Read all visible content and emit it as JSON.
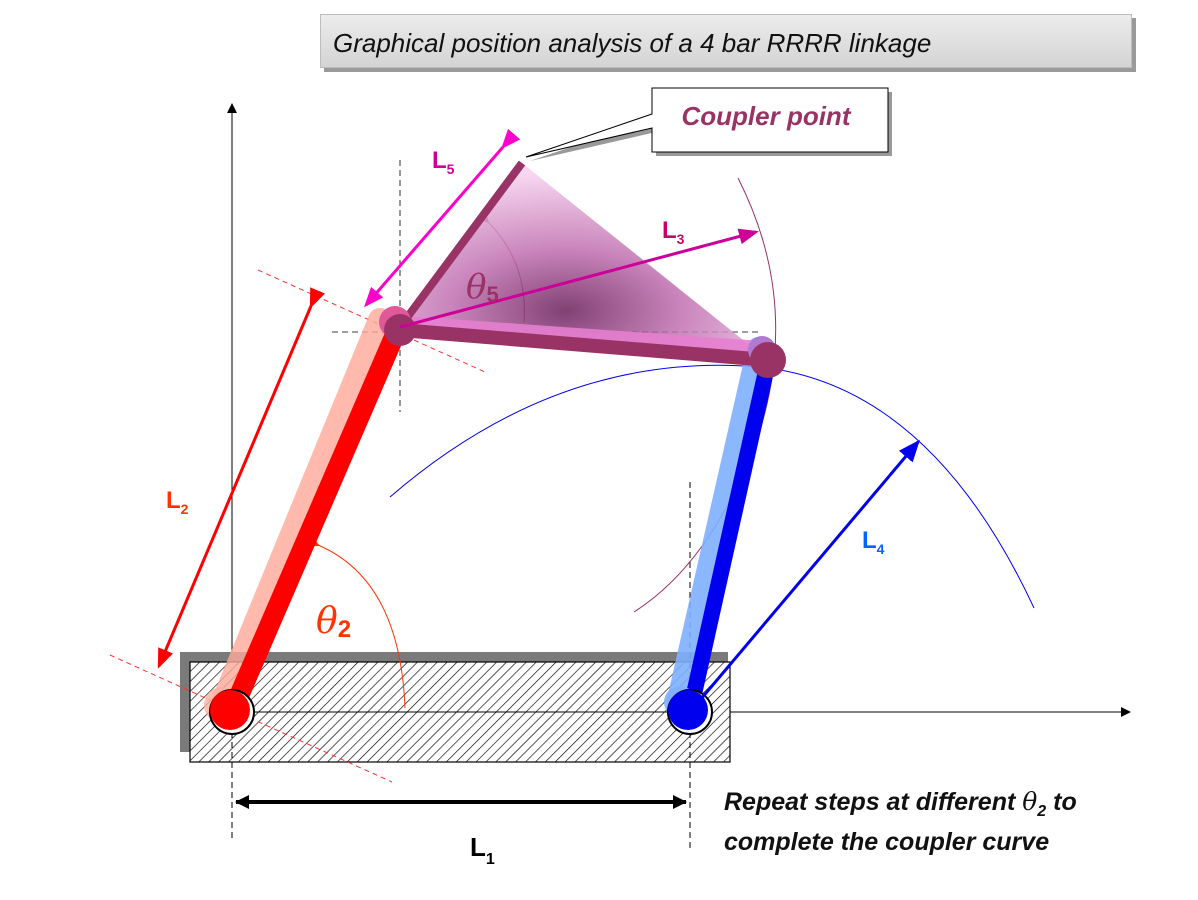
{
  "title": "Graphical position analysis of a 4 bar RRRR linkage",
  "callout": {
    "label": "Coupler point"
  },
  "labels": {
    "L1": {
      "base": "L",
      "sub": "1"
    },
    "L2": {
      "base": "L",
      "sub": "2"
    },
    "L3": {
      "base": "L",
      "sub": "3"
    },
    "L4": {
      "base": "L",
      "sub": "4"
    },
    "L5": {
      "base": "L",
      "sub": "5"
    },
    "theta2": {
      "symbol": "θ",
      "sub": "2"
    },
    "theta5": {
      "symbol": "θ",
      "sub": "5"
    }
  },
  "note": {
    "line1_prefix": "Repeat steps at different ",
    "line1_symbol": "θ",
    "line1_sub": "2",
    "line1_suffix": " to",
    "line2": "complete the coupler curve"
  },
  "colors": {
    "crank": "#ff0000",
    "coupler": "#993366",
    "rocker": "#0000ee",
    "coupler_point": "#d40093",
    "label_L2": "#ff3300",
    "label_L3": "#cc0066",
    "label_L4": "#0066ff",
    "label_L5": "#cc0099",
    "callout_text": "#993366"
  }
}
